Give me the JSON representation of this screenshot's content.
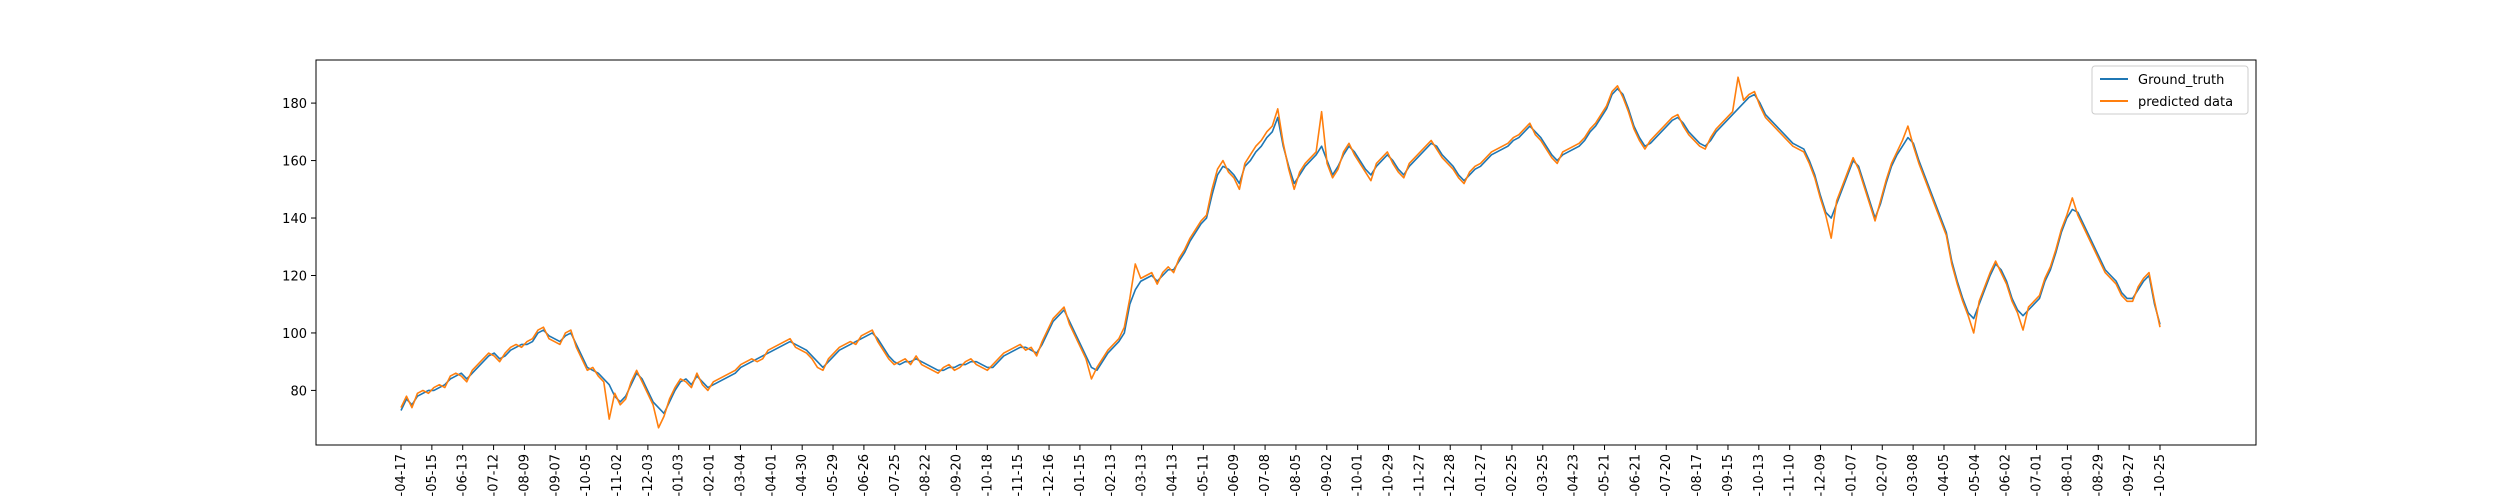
{
  "chart_data": {
    "type": "line",
    "title": "",
    "xlabel": "",
    "ylabel": "",
    "ylim": [
      61,
      195
    ],
    "yticks": [
      80,
      100,
      120,
      140,
      160,
      180
    ],
    "x_tick_labels": [
      "-04-17",
      "-05-15",
      "-06-13",
      "-07-12",
      "-08-09",
      "-09-07",
      "-10-05",
      "-11-02",
      "-12-03",
      "-01-03",
      "-02-01",
      "-03-04",
      "-04-01",
      "-04-30",
      "-05-29",
      "-06-26",
      "-07-25",
      "-08-22",
      "-09-20",
      "-10-18",
      "-11-15",
      "-12-16",
      "-01-15",
      "-02-13",
      "-03-13",
      "-04-13",
      "-05-11",
      "-06-09",
      "-07-08",
      "-08-05",
      "-09-02",
      "-10-01",
      "-10-29",
      "-11-27",
      "-12-28",
      "-01-27",
      "-02-25",
      "-03-25",
      "-04-23",
      "-05-21",
      "-06-21",
      "-07-20",
      "-08-17",
      "-09-15",
      "-10-13",
      "-11-10",
      "-12-09",
      "-01-07",
      "-02-07",
      "-03-08",
      "-04-05",
      "-05-04",
      "-06-02",
      "-07-01",
      "-08-01",
      "-08-29",
      "-09-27",
      "-10-25"
    ],
    "grid": false,
    "legend_position": "top-right",
    "colors": {
      "ground_truth": "#1f77b4",
      "predicted": "#ff7f0e"
    },
    "series": [
      {
        "name": "Ground_truth",
        "values": [
          73,
          77,
          75,
          78,
          79,
          80,
          80,
          81,
          82,
          84,
          85,
          86,
          84,
          86,
          88,
          90,
          92,
          93,
          91,
          92,
          94,
          95,
          96,
          96,
          97,
          100,
          101,
          99,
          98,
          97,
          99,
          100,
          96,
          92,
          88,
          87,
          86,
          84,
          82,
          78,
          76,
          78,
          82,
          86,
          84,
          80,
          76,
          74,
          72,
          76,
          80,
          83,
          84,
          82,
          85,
          83,
          81,
          82,
          83,
          84,
          85,
          86,
          88,
          89,
          90,
          91,
          92,
          93,
          94,
          95,
          96,
          97,
          96,
          95,
          94,
          92,
          90,
          88,
          90,
          92,
          94,
          95,
          96,
          97,
          98,
          99,
          100,
          98,
          95,
          92,
          90,
          89,
          90,
          90,
          91,
          90,
          89,
          88,
          87,
          87,
          88,
          88,
          89,
          89,
          90,
          90,
          89,
          88,
          88,
          90,
          92,
          93,
          94,
          95,
          95,
          94,
          93,
          96,
          100,
          104,
          106,
          108,
          104,
          100,
          96,
          92,
          88,
          87,
          90,
          93,
          95,
          97,
          100,
          110,
          115,
          118,
          119,
          120,
          118,
          120,
          122,
          122,
          125,
          128,
          132,
          135,
          138,
          140,
          148,
          155,
          158,
          157,
          155,
          152,
          158,
          160,
          163,
          165,
          168,
          170,
          175,
          165,
          158,
          152,
          155,
          158,
          160,
          162,
          165,
          160,
          155,
          158,
          162,
          165,
          163,
          160,
          157,
          155,
          158,
          160,
          162,
          160,
          157,
          155,
          158,
          160,
          162,
          164,
          166,
          165,
          162,
          160,
          158,
          155,
          153,
          155,
          157,
          158,
          160,
          162,
          163,
          164,
          165,
          167,
          168,
          170,
          172,
          170,
          168,
          165,
          162,
          160,
          162,
          163,
          164,
          165,
          167,
          170,
          172,
          175,
          178,
          183,
          185,
          183,
          178,
          172,
          168,
          165,
          166,
          168,
          170,
          172,
          174,
          175,
          173,
          170,
          168,
          166,
          165,
          167,
          170,
          172,
          174,
          176,
          178,
          180,
          182,
          183,
          180,
          176,
          174,
          172,
          170,
          168,
          166,
          165,
          164,
          160,
          155,
          148,
          142,
          140,
          145,
          150,
          155,
          160,
          158,
          152,
          146,
          140,
          145,
          152,
          158,
          162,
          165,
          168,
          166,
          160,
          155,
          150,
          145,
          140,
          135,
          125,
          118,
          112,
          107,
          105,
          110,
          115,
          120,
          124,
          122,
          118,
          112,
          108,
          106,
          108,
          110,
          112,
          118,
          122,
          128,
          135,
          140,
          143,
          142,
          138,
          134,
          130,
          126,
          122,
          120,
          118,
          114,
          112,
          112,
          115,
          118,
          120,
          110,
          103
        ]
      },
      {
        "name": "predicted data",
        "values": [
          74,
          78,
          74,
          79,
          80,
          79,
          81,
          82,
          81,
          85,
          86,
          85,
          83,
          87,
          89,
          91,
          93,
          92,
          90,
          93,
          95,
          96,
          95,
          97,
          98,
          101,
          102,
          98,
          97,
          96,
          100,
          101,
          95,
          91,
          87,
          88,
          85,
          83,
          70,
          79,
          75,
          77,
          83,
          87,
          83,
          79,
          75,
          67,
          71,
          77,
          81,
          84,
          83,
          81,
          86,
          82,
          80,
          83,
          84,
          85,
          86,
          87,
          89,
          90,
          91,
          90,
          91,
          94,
          95,
          96,
          97,
          98,
          95,
          94,
          93,
          91,
          88,
          87,
          91,
          93,
          95,
          96,
          97,
          96,
          99,
          100,
          101,
          97,
          94,
          91,
          89,
          90,
          91,
          89,
          92,
          89,
          88,
          87,
          86,
          88,
          89,
          87,
          88,
          90,
          91,
          89,
          88,
          87,
          89,
          91,
          93,
          94,
          95,
          96,
          94,
          95,
          92,
          97,
          101,
          105,
          107,
          109,
          103,
          99,
          95,
          91,
          84,
          88,
          91,
          94,
          96,
          98,
          102,
          112,
          124,
          119,
          120,
          121,
          117,
          121,
          123,
          121,
          126,
          129,
          133,
          136,
          139,
          141,
          150,
          157,
          160,
          156,
          154,
          150,
          159,
          162,
          165,
          167,
          170,
          172,
          178,
          166,
          157,
          150,
          156,
          159,
          161,
          163,
          177,
          159,
          154,
          157,
          163,
          166,
          162,
          159,
          156,
          153,
          159,
          161,
          163,
          159,
          156,
          154,
          159,
          161,
          163,
          165,
          167,
          164,
          161,
          159,
          157,
          154,
          152,
          156,
          158,
          159,
          161,
          163,
          164,
          165,
          166,
          168,
          169,
          171,
          173,
          169,
          167,
          164,
          161,
          159,
          163,
          164,
          165,
          166,
          168,
          171,
          173,
          176,
          179,
          184,
          186,
          182,
          177,
          171,
          167,
          164,
          167,
          169,
          171,
          173,
          175,
          176,
          172,
          169,
          167,
          165,
          164,
          168,
          171,
          173,
          175,
          177,
          189,
          181,
          183,
          184,
          179,
          175,
          173,
          171,
          169,
          167,
          165,
          164,
          163,
          159,
          154,
          147,
          141,
          133,
          146,
          151,
          156,
          161,
          157,
          151,
          145,
          139,
          146,
          153,
          159,
          163,
          167,
          172,
          165,
          159,
          154,
          149,
          144,
          139,
          134,
          124,
          117,
          111,
          106,
          100,
          111,
          116,
          121,
          125,
          121,
          117,
          111,
          107,
          101,
          109,
          111,
          113,
          119,
          123,
          129,
          136,
          141,
          147,
          141,
          137,
          133,
          129,
          125,
          121,
          119,
          117,
          113,
          111,
          111,
          116,
          119,
          121,
          111,
          102
        ]
      }
    ]
  }
}
